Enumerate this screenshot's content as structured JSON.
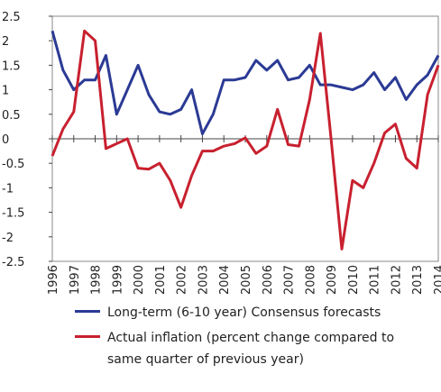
{
  "chart_data": {
    "type": "line",
    "x": [
      1996,
      1996.5,
      1997,
      1997.5,
      1998,
      1998.5,
      1999,
      1999.5,
      2000,
      2000.5,
      2001,
      2001.5,
      2002,
      2002.5,
      2003,
      2003.5,
      2004,
      2004.5,
      2005,
      2005.5,
      2006,
      2006.5,
      2007,
      2007.5,
      2008,
      2008.5,
      2009,
      2009.5,
      2010,
      2010.5,
      2011,
      2011.5,
      2012,
      2012.5,
      2013,
      2013.5,
      2014
    ],
    "series": [
      {
        "name": "Long-term (6-10 year) Consensus forecasts",
        "color": "#2b3a94",
        "values": [
          2.2,
          1.4,
          1.0,
          1.2,
          1.2,
          1.7,
          0.5,
          1.0,
          1.5,
          0.9,
          0.55,
          0.5,
          0.6,
          1.0,
          0.1,
          0.5,
          1.2,
          1.2,
          1.25,
          1.6,
          1.4,
          1.6,
          1.2,
          1.25,
          1.5,
          1.1,
          1.1,
          1.05,
          1.0,
          1.1,
          1.35,
          1.0,
          1.25,
          0.8,
          1.1,
          1.3,
          1.7
        ]
      },
      {
        "name": "Actual inflation (percent change compared to same quarter of previous year)",
        "color": "#c8202f",
        "values": [
          -0.35,
          0.2,
          0.55,
          2.2,
          2.0,
          -0.2,
          -0.1,
          0.0,
          -0.6,
          -0.62,
          -0.5,
          -0.85,
          -1.4,
          -0.75,
          -0.25,
          -0.25,
          -0.15,
          -0.1,
          0.02,
          -0.3,
          -0.15,
          0.6,
          -0.12,
          -0.15,
          0.8,
          2.15,
          0.0,
          -2.25,
          -0.85,
          -1.0,
          -0.5,
          0.12,
          0.3,
          -0.4,
          -0.6,
          0.9,
          1.5
        ]
      }
    ],
    "xlim": [
      1996,
      2014
    ],
    "xticks": [
      1996,
      1997,
      1998,
      1999,
      2000,
      2001,
      2002,
      2003,
      2004,
      2005,
      2006,
      2007,
      2008,
      2009,
      2010,
      2011,
      2012,
      2013,
      2014
    ],
    "ylim": [
      -2.5,
      2.5
    ],
    "yticks": [
      2.5,
      2,
      1.5,
      1,
      0.5,
      0,
      -0.5,
      -1,
      -1.5,
      -2,
      -2.5
    ]
  }
}
